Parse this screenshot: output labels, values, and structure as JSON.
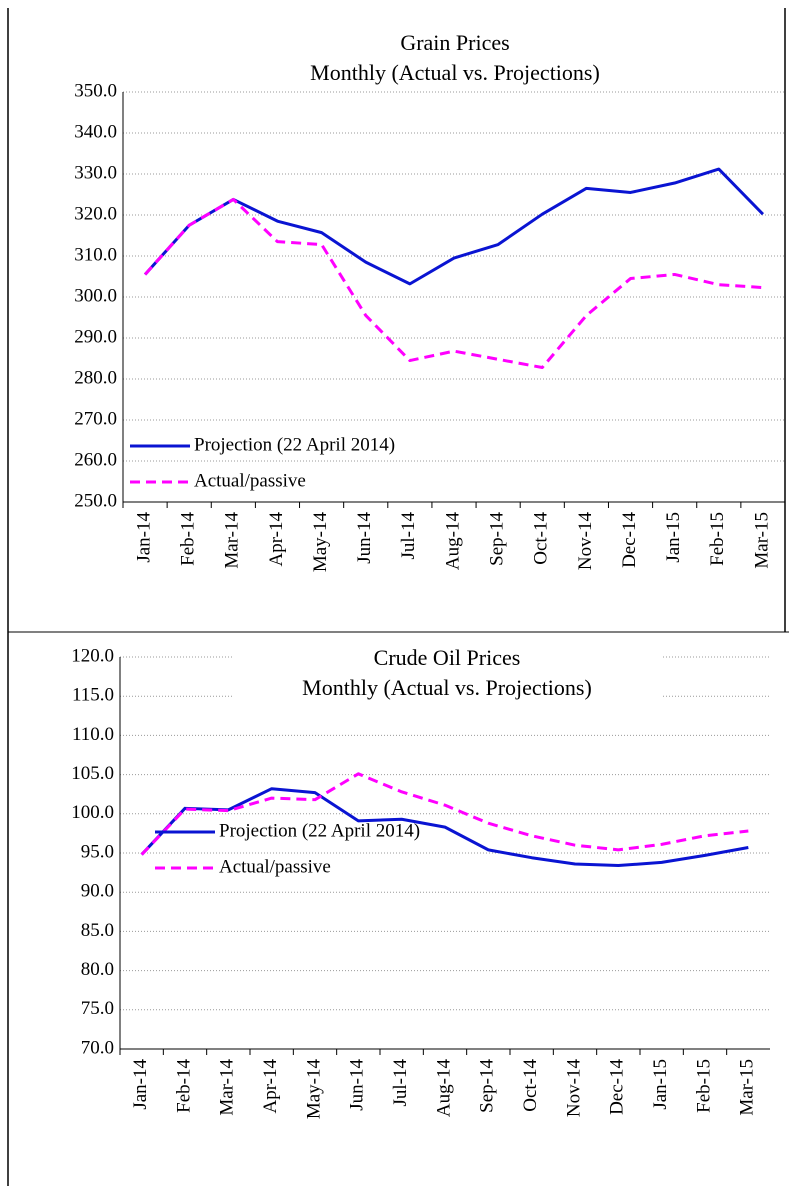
{
  "chart_data": [
    {
      "type": "line",
      "title": "Grain Prices",
      "subtitle": "Monthly (Actual vs. Projections)",
      "categories": [
        "Jan-14",
        "Feb-14",
        "Mar-14",
        "Apr-14",
        "May-14",
        "Jun-14",
        "Jul-14",
        "Aug-14",
        "Sep-14",
        "Oct-14",
        "Nov-14",
        "Dec-14",
        "Jan-15",
        "Feb-15",
        "Mar-15"
      ],
      "series": [
        {
          "name": "Projection (22 April 2014)",
          "color": "#0a14d2",
          "dashed": false,
          "values": [
            305.5,
            317.5,
            323.8,
            318.5,
            315.7,
            308.5,
            303.2,
            309.5,
            312.8,
            320.2,
            326.5,
            325.5,
            327.8,
            331.2,
            320.2
          ]
        },
        {
          "name": "Actual/passive",
          "color": "#ff00ff",
          "dashed": true,
          "values": [
            305.5,
            317.5,
            323.8,
            313.5,
            312.8,
            295.5,
            284.5,
            286.8,
            284.8,
            282.8,
            295.5,
            304.5,
            305.5,
            303.0,
            302.3
          ]
        }
      ],
      "ylim": [
        250,
        350
      ],
      "yticks": [
        {
          "value": 250,
          "label": "250.0"
        },
        {
          "value": 260,
          "label": "260.0"
        },
        {
          "value": 270,
          "label": "270.0"
        },
        {
          "value": 280,
          "label": "280.0"
        },
        {
          "value": 290,
          "label": "290.0"
        },
        {
          "value": 300,
          "label": "300.0"
        },
        {
          "value": 310,
          "label": "310.0"
        },
        {
          "value": 320,
          "label": "320.0"
        },
        {
          "value": 330,
          "label": "330.0"
        },
        {
          "value": 340,
          "label": "340.0"
        },
        {
          "value": 350,
          "label": "350.0"
        }
      ],
      "grid": true,
      "legend": "lower left"
    },
    {
      "type": "line",
      "title": "Crude Oil Prices",
      "subtitle": "Monthly (Actual vs. Projections)",
      "categories": [
        "Jan-14",
        "Feb-14",
        "Mar-14",
        "Apr-14",
        "May-14",
        "Jun-14",
        "Jul-14",
        "Aug-14",
        "Sep-14",
        "Oct-14",
        "Nov-14",
        "Dec-14",
        "Jan-15",
        "Feb-15",
        "Mar-15"
      ],
      "series": [
        {
          "name": "Projection (22 April 2014)",
          "color": "#0a14d2",
          "dashed": false,
          "values": [
            94.8,
            100.7,
            100.5,
            103.2,
            102.7,
            99.1,
            99.3,
            98.3,
            95.4,
            94.4,
            93.6,
            93.4,
            93.8,
            94.7,
            95.7
          ]
        },
        {
          "name": "Actual/passive",
          "color": "#ff00ff",
          "dashed": true,
          "values": [
            94.8,
            100.6,
            100.4,
            102.0,
            101.8,
            105.1,
            102.8,
            101.1,
            98.8,
            97.2,
            96.0,
            95.4,
            96.1,
            97.2,
            97.8
          ]
        }
      ],
      "ylim": [
        70,
        120
      ],
      "yticks": [
        {
          "value": 70,
          "label": "70.0"
        },
        {
          "value": 75,
          "label": "75.0"
        },
        {
          "value": 80,
          "label": "80.0"
        },
        {
          "value": 85,
          "label": "85.0"
        },
        {
          "value": 90,
          "label": "90.0"
        },
        {
          "value": 95,
          "label": "95.0"
        },
        {
          "value": 100,
          "label": "100.0"
        },
        {
          "value": 105,
          "label": "105.0"
        },
        {
          "value": 110,
          "label": "110.0"
        },
        {
          "value": 115,
          "label": "115.0"
        },
        {
          "value": 120,
          "label": "120.0"
        }
      ],
      "grid": true,
      "legend": "lower left"
    }
  ]
}
